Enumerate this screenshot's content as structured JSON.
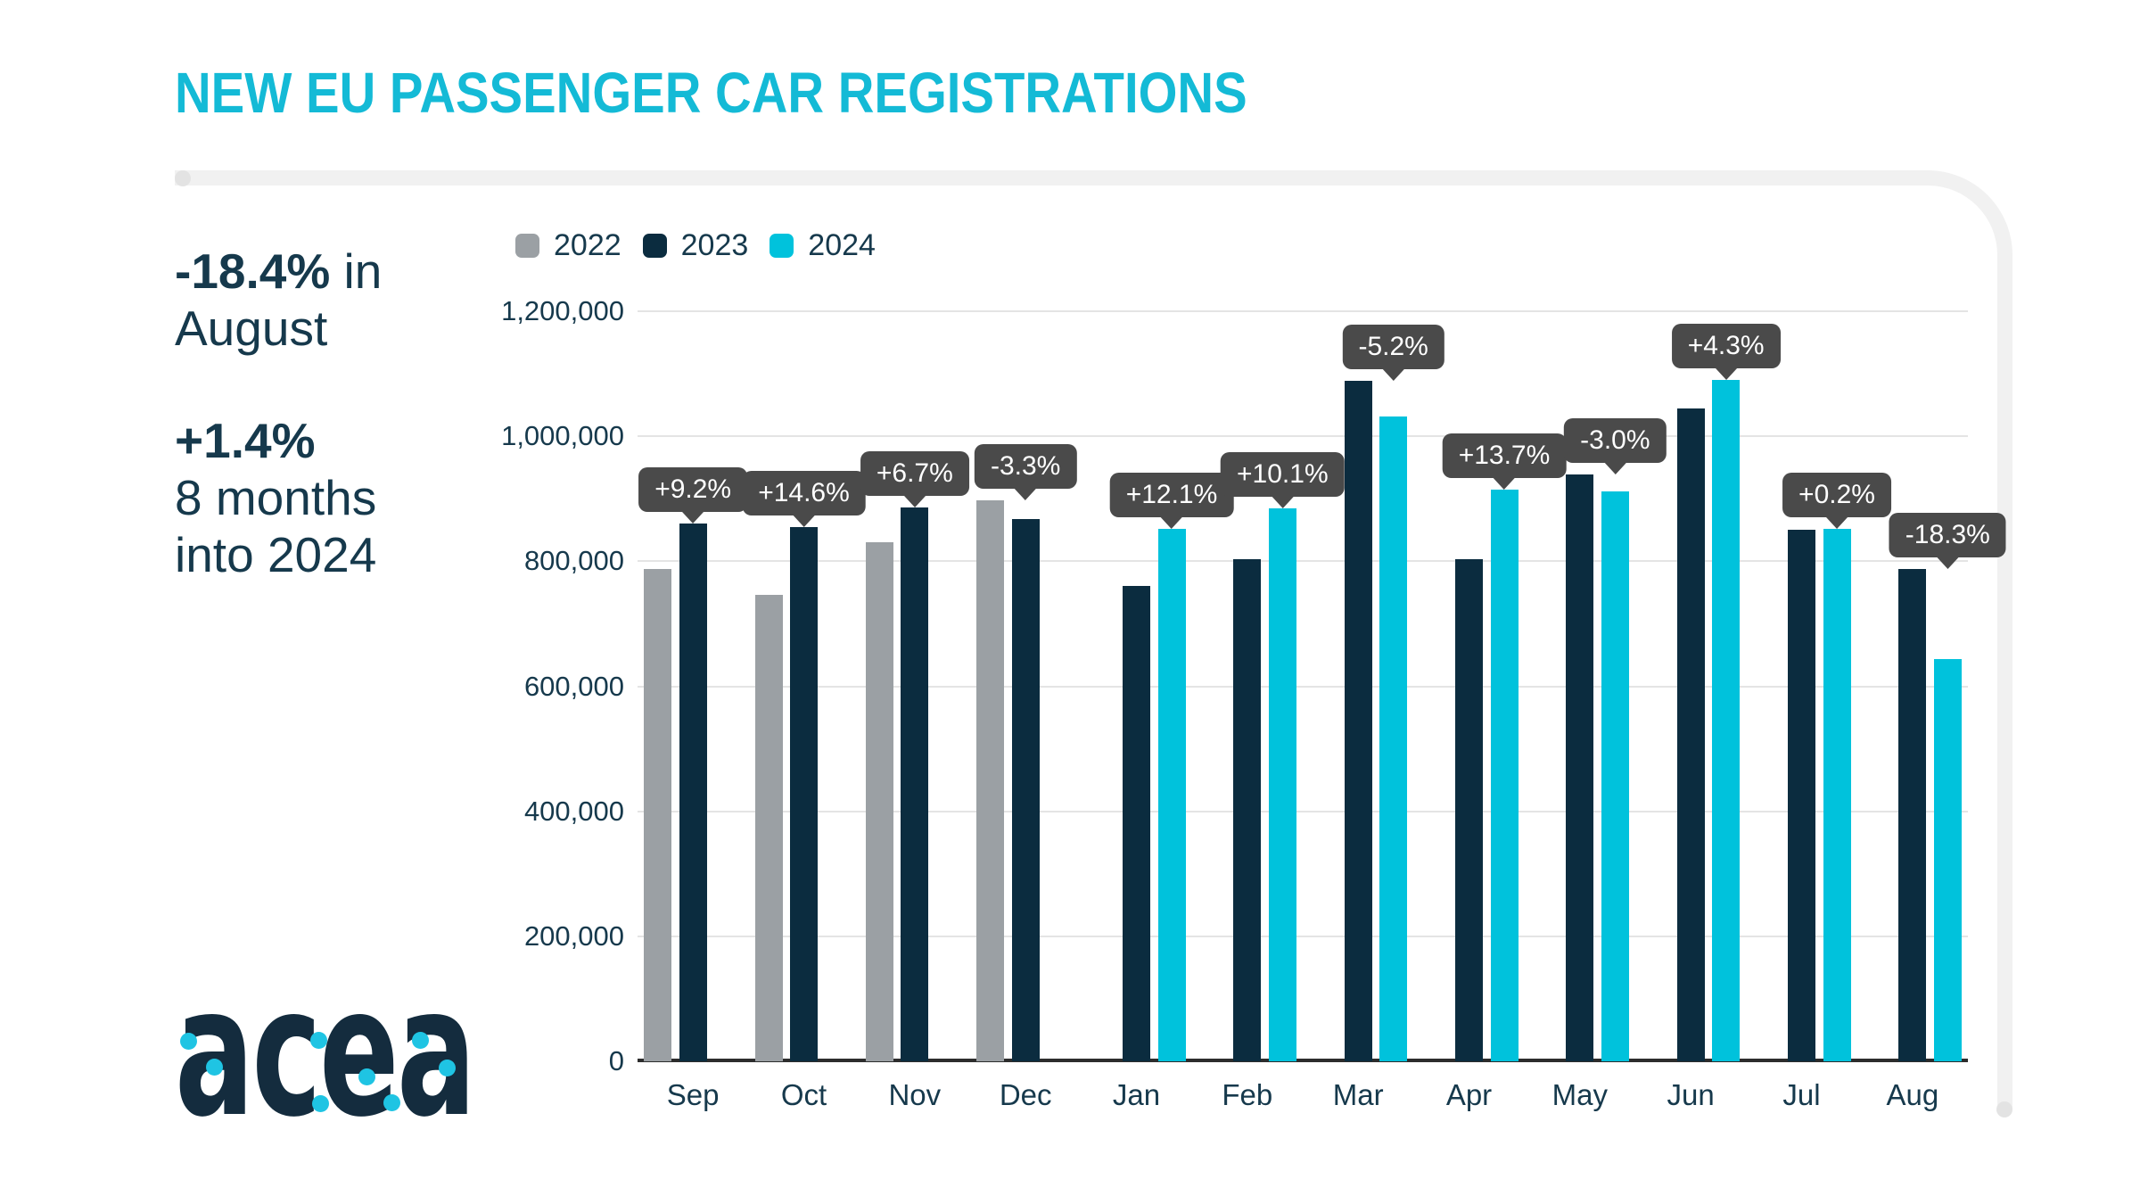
{
  "title": "NEW EU PASSENGER CAR REGISTRATIONS",
  "stats": {
    "august": {
      "value": "-18.4%",
      "suffix": " in",
      "line2": "August"
    },
    "ytd": {
      "value": "+1.4%",
      "line2": "8 months",
      "line3": "into 2024"
    }
  },
  "logo": {
    "text": "acea"
  },
  "colors": {
    "title_cyan": "#14bad6",
    "text_navy": "#16394c",
    "bar_2022_gray": "#9ba0a4",
    "bar_2023_navy": "#0b2c3f",
    "bar_2024_cyan": "#00c2dc",
    "tooltip_bg": "#4a4a4a",
    "gridline": "#e4e4e4",
    "axis": "#2d2d2d",
    "logo_navy": "#142c3e",
    "logo_dot_cyan": "#1fc4e3"
  },
  "chart_data": {
    "type": "bar",
    "title": "NEW EU PASSENGER CAR REGISTRATIONS",
    "categories": [
      "Sep",
      "Oct",
      "Nov",
      "Dec",
      "Jan",
      "Feb",
      "Mar",
      "Apr",
      "May",
      "Jun",
      "Jul",
      "Aug"
    ],
    "series": [
      {
        "name": "2022",
        "color": "#9ba0a4",
        "values": [
          788000,
          746000,
          830000,
          897000,
          null,
          null,
          null,
          null,
          null,
          null,
          null,
          null
        ]
      },
      {
        "name": "2023",
        "color": "#0b2c3f",
        "values": [
          861000,
          855000,
          886000,
          867000,
          760000,
          803000,
          1088000,
          803000,
          939000,
          1045000,
          851000,
          788000
        ]
      },
      {
        "name": "2024",
        "color": "#00c2dc",
        "values": [
          null,
          null,
          null,
          null,
          852000,
          884000,
          1032000,
          914000,
          912000,
          1090000,
          852000,
          644000
        ]
      }
    ],
    "annotations": [
      "+9.2%",
      "+14.6%",
      "+6.7%",
      "-3.3%",
      "+12.1%",
      "+10.1%",
      "-5.2%",
      "+13.7%",
      "-3.0%",
      "+4.3%",
      "+0.2%",
      "-18.3%"
    ],
    "ylim": [
      0,
      1200000
    ],
    "ytick_step": 200000,
    "grid": true,
    "legend": [
      "2022",
      "2023",
      "2024"
    ],
    "legend_position": "top-left"
  }
}
